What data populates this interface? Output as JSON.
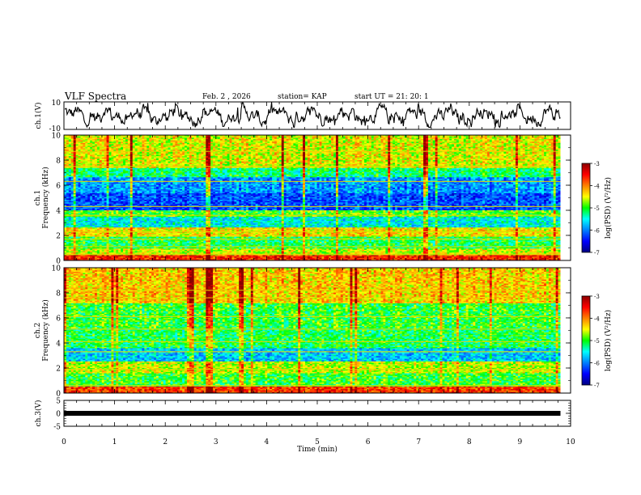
{
  "header": {
    "title": "VLF Spectra",
    "date": "Feb. 2 , 2026",
    "station": "station= KAP",
    "start": "start UT =  21: 20: 1"
  },
  "chart_data": [
    {
      "type": "line",
      "name": "ch1-waveform",
      "ylabel": "ch.1(V)",
      "ylim": [
        -10,
        10
      ],
      "yticks": [
        "10",
        "-10"
      ],
      "xlim": [
        0,
        10
      ],
      "description_values_note": "noisy waveform oscillating roughly between -8 and 8 V over 0 to 9.8 min"
    },
    {
      "type": "heatmap",
      "name": "ch1-spectrogram",
      "ylabel": "ch.1\nFrequency (kHz)",
      "ylabel_line1": "ch.1",
      "ylabel_line2": "Frequency (kHz)",
      "ylim": [
        0,
        10
      ],
      "yticks": [
        "0",
        "2",
        "4",
        "6",
        "8",
        "10"
      ],
      "xlim": [
        0,
        10
      ],
      "data_x_end": 9.8,
      "bands": [
        {
          "from": 0.0,
          "to": 0.4,
          "level": -3.6
        },
        {
          "from": 0.4,
          "to": 1.0,
          "level": -4.6
        },
        {
          "from": 1.0,
          "to": 1.9,
          "level": -5.1
        },
        {
          "from": 1.9,
          "to": 2.6,
          "level": -4.4
        },
        {
          "from": 2.6,
          "to": 3.5,
          "level": -5.5
        },
        {
          "from": 3.5,
          "to": 4.0,
          "level": -4.9
        },
        {
          "from": 4.0,
          "to": 5.4,
          "level": -6.2
        },
        {
          "from": 5.4,
          "to": 6.6,
          "level": -5.9
        },
        {
          "from": 6.6,
          "to": 7.4,
          "level": -5.2
        },
        {
          "from": 7.4,
          "to": 10.0,
          "level": -4.5
        }
      ],
      "lines_khz": [
        0.5,
        1.1,
        1.7,
        2.3,
        3.6,
        4.3,
        6.3,
        7.5,
        8.7
      ]
    },
    {
      "type": "heatmap",
      "name": "ch2-spectrogram",
      "ylabel_line1": "ch.2",
      "ylabel_line2": "Frequency (kHz)",
      "ylim": [
        0,
        10
      ],
      "yticks": [
        "0",
        "2",
        "4",
        "6",
        "8",
        "10"
      ],
      "xlim": [
        0,
        10
      ],
      "data_x_end": 9.8,
      "bands": [
        {
          "from": 0.0,
          "to": 0.5,
          "level": -3.7
        },
        {
          "from": 0.5,
          "to": 1.6,
          "level": -5.0
        },
        {
          "from": 1.6,
          "to": 2.5,
          "level": -4.6
        },
        {
          "from": 2.5,
          "to": 3.6,
          "level": -5.7
        },
        {
          "from": 3.6,
          "to": 5.2,
          "level": -5.1
        },
        {
          "from": 5.2,
          "to": 7.2,
          "level": -5.0
        },
        {
          "from": 7.2,
          "to": 10.0,
          "level": -4.3
        }
      ],
      "lines_khz": [
        0.6,
        1.9,
        3.3,
        4.1,
        5.1,
        6.1,
        7.6,
        8.2
      ]
    },
    {
      "type": "line",
      "name": "ch3-signal",
      "ylabel": "ch.3(V)",
      "ylim": [
        -5,
        5
      ],
      "yticks": [
        "5",
        "0",
        "-5"
      ],
      "xlim": [
        0,
        10
      ],
      "level": 0,
      "x_end": 9.8
    }
  ],
  "xaxis": {
    "label": "Time (min)",
    "ticks": [
      "0",
      "1",
      "2",
      "3",
      "4",
      "5",
      "6",
      "7",
      "8",
      "9",
      "10"
    ]
  },
  "colorbar": {
    "label": "log(PSD) (V²/Hz)",
    "range": [
      -7,
      -3
    ],
    "ticks": [
      "-3",
      "-4",
      "-5",
      "-6",
      "-7"
    ],
    "colors": [
      "#000080",
      "#0000ff",
      "#0080ff",
      "#00ffff",
      "#00ff00",
      "#ffff00",
      "#ff8000",
      "#ff0000",
      "#8b0000"
    ]
  }
}
